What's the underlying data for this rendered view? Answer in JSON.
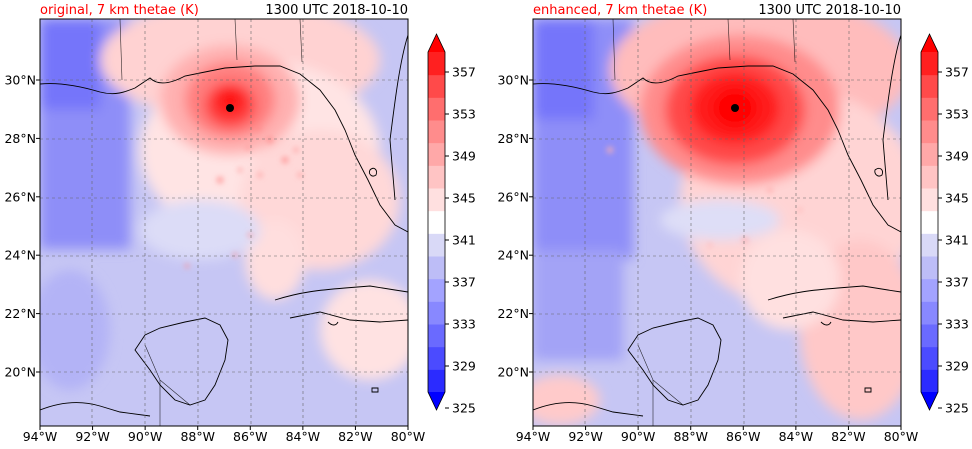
{
  "panels": [
    {
      "id": "original",
      "title_left": "original, 7 km thetae (K)",
      "title_right": "1300 UTC 2018-10-10",
      "storm_center": {
        "lon": -86.8,
        "lat": 29.1
      },
      "core_strength": "moderate"
    },
    {
      "id": "enhanced",
      "title_left": "enhanced, 7 km thetae (K)",
      "title_right": "1300 UTC 2018-10-10",
      "storm_center": {
        "lon": -86.2,
        "lat": 29.1
      },
      "core_strength": "strong"
    }
  ],
  "map_extent": {
    "lon_min": -94,
    "lon_max": -80,
    "lat_min": 18,
    "lat_max": 32
  },
  "x_ticks": [
    {
      "value": -94,
      "label": "94°W"
    },
    {
      "value": -92,
      "label": "92°W"
    },
    {
      "value": -90,
      "label": "90°W"
    },
    {
      "value": -88,
      "label": "88°W"
    },
    {
      "value": -86,
      "label": "86°W"
    },
    {
      "value": -84,
      "label": "84°W"
    },
    {
      "value": -82,
      "label": "82°W"
    },
    {
      "value": -80,
      "label": "80°W"
    }
  ],
  "y_ticks": [
    {
      "value": 30,
      "label": "30°N"
    },
    {
      "value": 28,
      "label": "28°N"
    },
    {
      "value": 26,
      "label": "26°N"
    },
    {
      "value": 24,
      "label": "24°N"
    },
    {
      "value": 22,
      "label": "22°N"
    },
    {
      "value": 20,
      "label": "20°N"
    }
  ],
  "colorbar": {
    "min": 325,
    "max": 357,
    "tick_values": [
      325,
      329,
      333,
      337,
      341,
      345,
      349,
      353,
      357
    ],
    "tick_labels": [
      "325",
      "329",
      "333",
      "337",
      "341",
      "345",
      "349",
      "353",
      "357"
    ],
    "levels": [
      327,
      329,
      331,
      333,
      335,
      337,
      339,
      341,
      343,
      345,
      347,
      349,
      351,
      353,
      355,
      357
    ],
    "colors": [
      "#0000ff",
      "#2b2bff",
      "#4b4bff",
      "#6a6aff",
      "#8888ff",
      "#a3a3ff",
      "#bdbdf7",
      "#d9d9f7",
      "#ffffff",
      "#ffe0e0",
      "#ffc4c4",
      "#ffa8a8",
      "#ff8c8c",
      "#ff6e6e",
      "#ff4a4a",
      "#ff2020",
      "#ff0000"
    ]
  },
  "colors": {
    "title_left": "#ff0000",
    "text": "#000000"
  }
}
